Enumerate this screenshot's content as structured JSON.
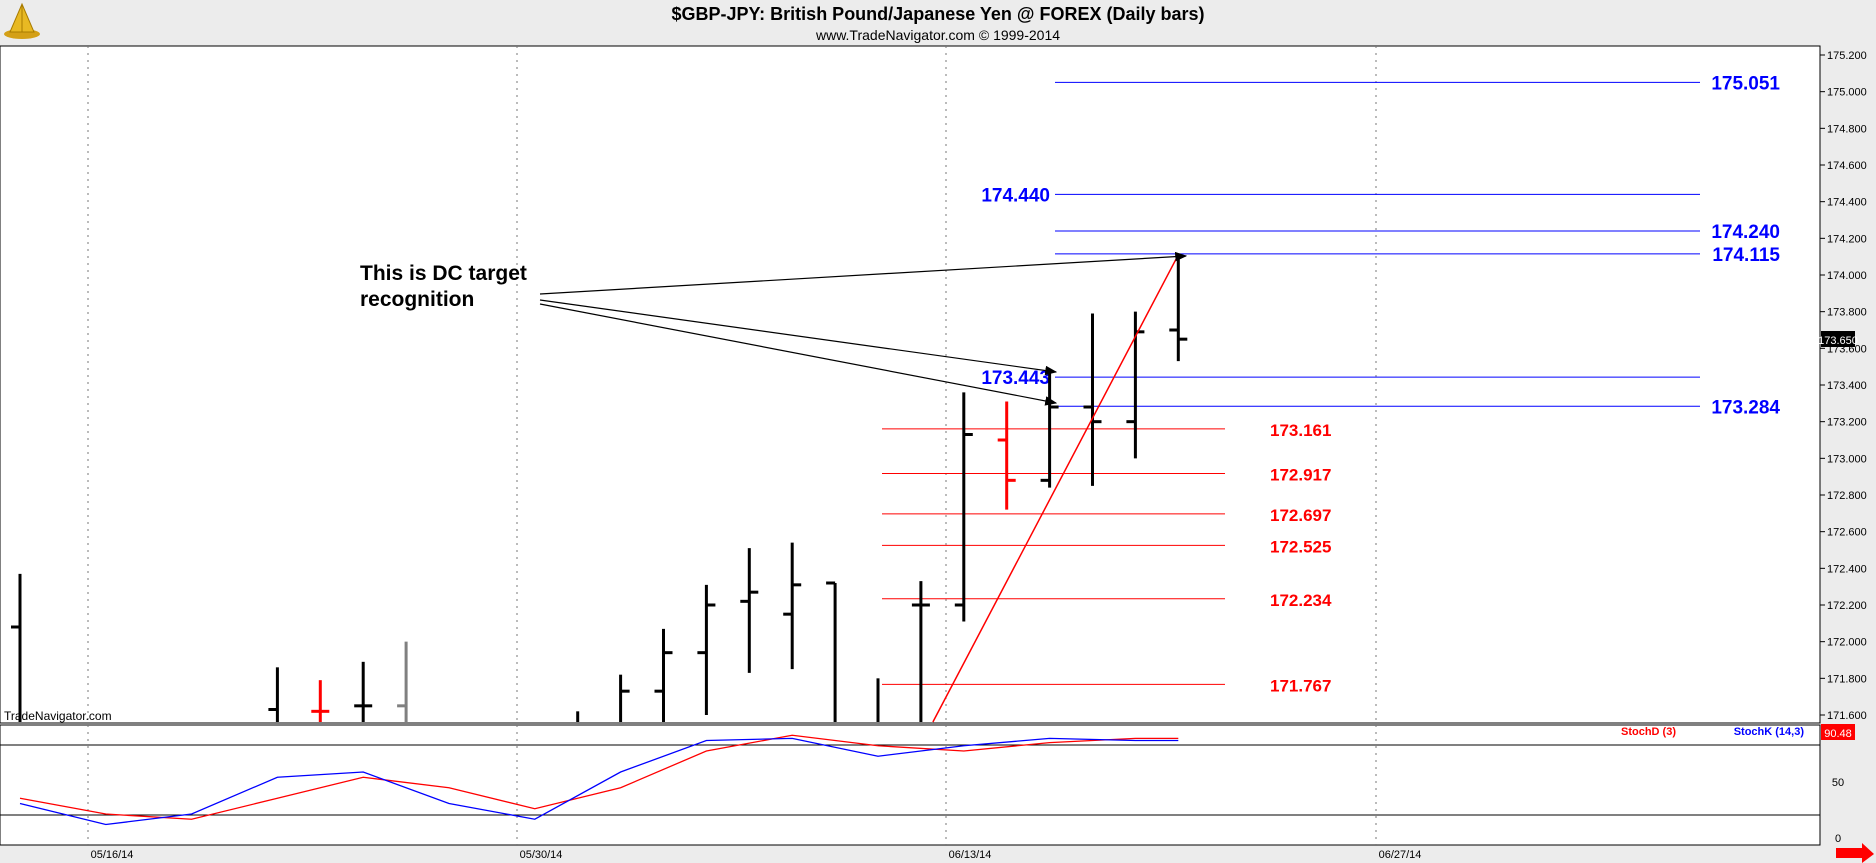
{
  "header": {
    "title": "$GBP-JPY:  British Pound/Japanese Yen @ FOREX  (Daily bars)",
    "subtitle": "www.TradeNavigator.com © 1999-2014",
    "logo_icon": "trade-navigator-logo-icon"
  },
  "watermark": "TradeNavigator.com",
  "annotation": {
    "line1": "This is DC target",
    "line2": "recognition"
  },
  "colors": {
    "bar_black": "#000000",
    "bar_red": "#ff0000",
    "bar_gray": "#808080",
    "level_blue": "#0000ff",
    "level_red": "#ff0000",
    "stoch_d": "#ff0000",
    "stoch_k": "#0000ff",
    "price_badge_bg": "#000000",
    "stoch_badge_bg": "#ff0000",
    "axis_bg": "#ececec"
  },
  "chart_data": {
    "type": "ohlc",
    "price_axis": {
      "min": 171.5,
      "max": 175.25,
      "ticks": [
        "175.200",
        "175.000",
        "174.800",
        "174.600",
        "174.400",
        "174.200",
        "174.000",
        "173.800",
        "173.600",
        "173.400",
        "173.200",
        "173.000",
        "172.800",
        "172.600",
        "172.400",
        "172.200",
        "172.000",
        "171.800",
        "171.600"
      ]
    },
    "last_price": "173.650",
    "date_labels": [
      "05/16/14",
      "05/30/14",
      "06/13/14",
      "06/27/14"
    ],
    "bars": [
      {
        "i": 0,
        "o": 172.08,
        "h": 172.37,
        "l": 171.5,
        "c": 171.5,
        "color": "black"
      },
      {
        "i": 6,
        "o": 171.63,
        "h": 171.86,
        "l": 171.5,
        "c": 171.5,
        "color": "black"
      },
      {
        "i": 7,
        "o": 171.62,
        "h": 171.79,
        "l": 171.5,
        "c": 171.62,
        "color": "red"
      },
      {
        "i": 8,
        "o": 171.65,
        "h": 171.89,
        "l": 171.5,
        "c": 171.65,
        "color": "black"
      },
      {
        "i": 9,
        "o": 171.65,
        "h": 172.0,
        "l": 171.5,
        "c": 171.5,
        "color": "gray"
      },
      {
        "i": 13,
        "o": 171.5,
        "h": 171.62,
        "l": 171.5,
        "c": 171.5,
        "color": "black"
      },
      {
        "i": 14,
        "o": 171.5,
        "h": 171.82,
        "l": 171.5,
        "c": 171.73,
        "color": "black"
      },
      {
        "i": 15,
        "o": 171.73,
        "h": 172.07,
        "l": 171.5,
        "c": 171.94,
        "color": "black"
      },
      {
        "i": 16,
        "o": 171.94,
        "h": 172.31,
        "l": 171.6,
        "c": 172.2,
        "color": "black"
      },
      {
        "i": 17,
        "o": 172.22,
        "h": 172.51,
        "l": 171.83,
        "c": 172.27,
        "color": "black"
      },
      {
        "i": 18,
        "o": 172.15,
        "h": 172.54,
        "l": 171.85,
        "c": 172.31,
        "color": "black"
      },
      {
        "i": 19,
        "o": 172.32,
        "h": 172.32,
        "l": 171.5,
        "c": 171.5,
        "color": "black"
      },
      {
        "i": 20,
        "o": 171.5,
        "h": 171.8,
        "l": 171.5,
        "c": 171.5,
        "color": "black"
      },
      {
        "i": 21,
        "o": 172.2,
        "h": 172.33,
        "l": 171.5,
        "c": 172.2,
        "color": "black"
      },
      {
        "i": 22,
        "o": 172.2,
        "h": 173.36,
        "l": 172.11,
        "c": 173.13,
        "color": "black"
      },
      {
        "i": 23,
        "o": 173.1,
        "h": 173.31,
        "l": 172.72,
        "c": 172.88,
        "color": "red"
      },
      {
        "i": 24,
        "o": 172.88,
        "h": 173.47,
        "l": 172.84,
        "c": 173.28,
        "color": "black"
      },
      {
        "i": 25,
        "o": 173.28,
        "h": 173.79,
        "l": 172.85,
        "c": 173.2,
        "color": "black"
      },
      {
        "i": 26,
        "o": 173.2,
        "h": 173.8,
        "l": 173.0,
        "c": 173.69,
        "color": "black"
      },
      {
        "i": 27,
        "o": 173.7,
        "h": 174.11,
        "l": 173.53,
        "c": 173.65,
        "color": "black"
      }
    ],
    "levels_blue": [
      {
        "value": 175.051,
        "label": "175.051"
      },
      {
        "value": 174.44,
        "label": "174.440"
      },
      {
        "value": 174.24,
        "label": "174.240"
      },
      {
        "value": 174.115,
        "label": "174.115"
      },
      {
        "value": 173.443,
        "label": "173.443"
      },
      {
        "value": 173.284,
        "label": "173.284"
      }
    ],
    "levels_red": [
      {
        "value": 173.161,
        "label": "173.161"
      },
      {
        "value": 172.917,
        "label": "172.917"
      },
      {
        "value": 172.697,
        "label": "172.697"
      },
      {
        "value": 172.525,
        "label": "172.525"
      },
      {
        "value": 172.234,
        "label": "172.234"
      },
      {
        "value": 171.767,
        "label": "171.767"
      }
    ],
    "trend_line": {
      "from": {
        "i": 21,
        "v": 171.5
      },
      "to": {
        "i": 27,
        "v": 174.11
      }
    },
    "stochastic": {
      "d_label": "StochD (3)",
      "k_label": "StochK (14,3)",
      "last_value": "90.48",
      "axis_ticks": [
        "50",
        "0"
      ],
      "min": 0,
      "max": 100,
      "k_values": [
        [
          0,
          30
        ],
        [
          2,
          10
        ],
        [
          4,
          20
        ],
        [
          6,
          55
        ],
        [
          8,
          60
        ],
        [
          10,
          30
        ],
        [
          12,
          15
        ],
        [
          14,
          60
        ],
        [
          16,
          90
        ],
        [
          18,
          92
        ],
        [
          20,
          75
        ],
        [
          22,
          85
        ],
        [
          24,
          92
        ],
        [
          26,
          90
        ],
        [
          27,
          90
        ]
      ],
      "d_values": [
        [
          0,
          35
        ],
        [
          2,
          20
        ],
        [
          4,
          15
        ],
        [
          6,
          35
        ],
        [
          8,
          55
        ],
        [
          10,
          45
        ],
        [
          12,
          25
        ],
        [
          14,
          45
        ],
        [
          16,
          80
        ],
        [
          18,
          95
        ],
        [
          20,
          85
        ],
        [
          22,
          80
        ],
        [
          24,
          88
        ],
        [
          26,
          92
        ],
        [
          27,
          92
        ]
      ]
    }
  }
}
